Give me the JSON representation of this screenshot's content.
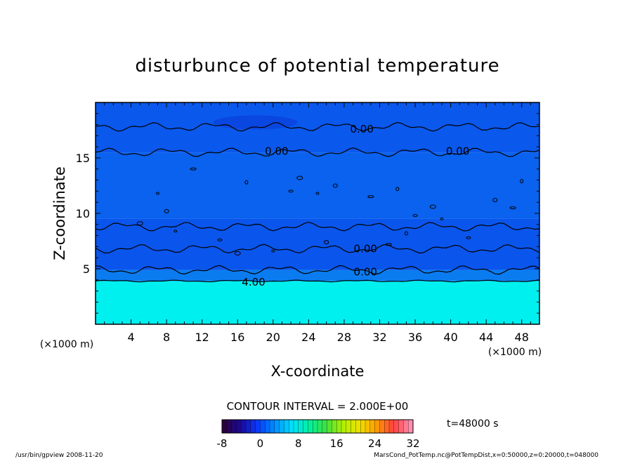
{
  "chart_data": {
    "type": "heatmap",
    "title": "disturbunce of potential temperature",
    "xlabel": "X-coordinate",
    "ylabel": "Z-coordinate",
    "x_unit": "(×1000 m)",
    "y_unit": "(×1000 m)",
    "xlim": [
      0,
      50
    ],
    "ylim": [
      0,
      20
    ],
    "x_ticks": [
      4,
      8,
      12,
      16,
      20,
      24,
      28,
      32,
      36,
      40,
      44,
      48
    ],
    "y_ticks": [
      5,
      10,
      15
    ],
    "contour_interval_text": "CONTOUR INTERVAL = 2.000E+00",
    "contour_labels": [
      {
        "text": "0.00",
        "x": 30.0,
        "y": 17.6
      },
      {
        "text": "0.00",
        "x": 20.4,
        "y": 15.6
      },
      {
        "text": "0.00",
        "x": 40.8,
        "y": 15.6
      },
      {
        "text": "0.00",
        "x": 30.4,
        "y": 6.8
      },
      {
        "text": "0.00",
        "x": 30.4,
        "y": 4.7
      },
      {
        "text": "4.00",
        "x": 17.8,
        "y": 3.8
      }
    ],
    "field_bands": [
      {
        "z_from": 0,
        "z_to": 3.9,
        "value": 4,
        "color": "#00f0f0"
      },
      {
        "z_from": 3.9,
        "z_to": 4.9,
        "value": 2,
        "color": "#0a7cf0"
      },
      {
        "z_from": 4.9,
        "z_to": 9.5,
        "value": 0,
        "color": "#0a55ec"
      },
      {
        "z_from": 9.5,
        "z_to": 15.5,
        "value": 0,
        "color": "#0a62ee"
      },
      {
        "z_from": 15.5,
        "z_to": 20,
        "value": 0,
        "color": "#0a58ec"
      }
    ],
    "colorbar": {
      "min": -8,
      "max": 32,
      "ticks": [
        "-8",
        "0",
        "8",
        "16",
        "24",
        "32"
      ],
      "colors": [
        "#2b0040",
        "#1a0a9a",
        "#0a3cff",
        "#0090ff",
        "#00e0ff",
        "#00f0a0",
        "#40e040",
        "#b0f000",
        "#f0e000",
        "#ff9a00",
        "#ff4040",
        "#ff8fb0"
      ]
    },
    "time_text": "t=48000  s"
  },
  "footer": {
    "left": "/usr/bin/gpview  2008-11-20",
    "right": "MarsCond_PotTemp.nc@PotTempDist,x=0:50000,z=0:20000,t=048000"
  }
}
